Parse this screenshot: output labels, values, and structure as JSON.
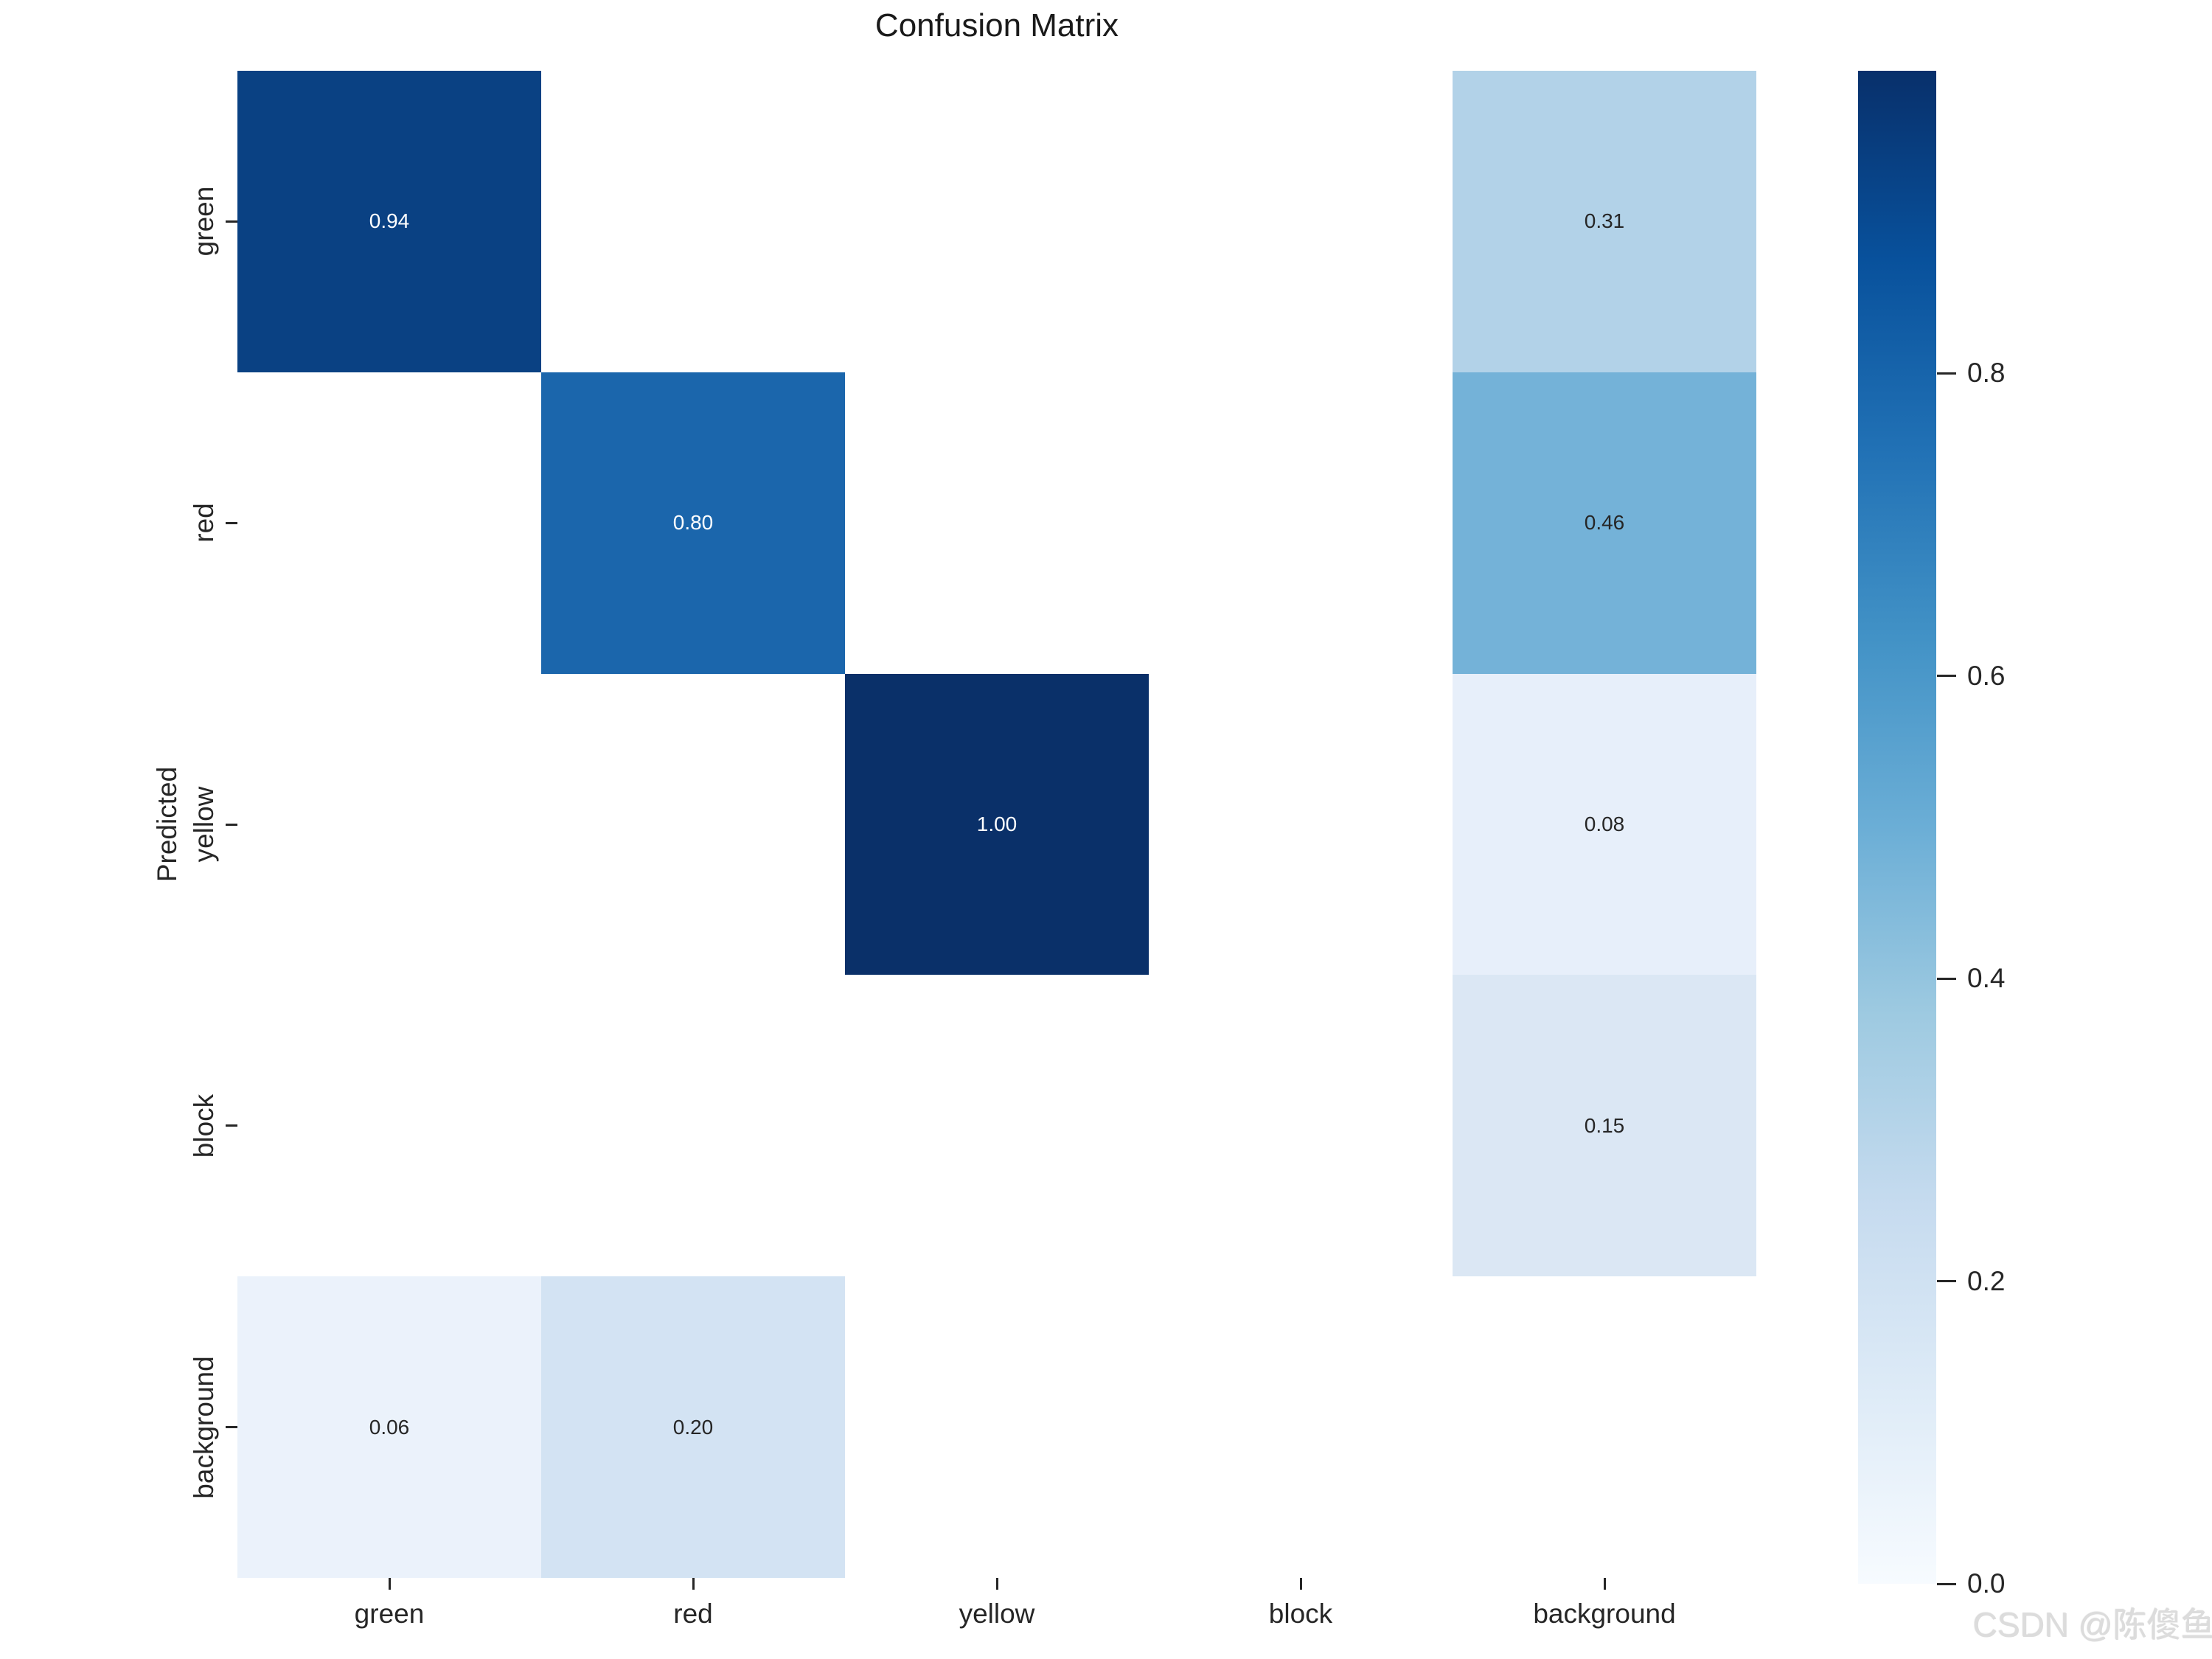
{
  "title": "Confusion Matrix",
  "watermark": "CSDN @陈傻鱼",
  "colors": {
    "figure_background": "#ffffff",
    "text": "#262626",
    "annotation_light": "#ffffff",
    "annotation_dark": "#262626",
    "masked_cell": "#ffffff",
    "watermark": "#dcdcdc",
    "colormap_stops_low_to_high": [
      "#f7fbff",
      "#deebf7",
      "#c6dbef",
      "#9ecae1",
      "#6baed6",
      "#4292c6",
      "#2171b5",
      "#08519c",
      "#08306b"
    ]
  },
  "chart_data": {
    "type": "heatmap",
    "title": "Confusion Matrix",
    "xlabel": "",
    "ylabel": "Predicted",
    "x_categories": [
      "green",
      "red",
      "yellow",
      "block",
      "background"
    ],
    "y_categories": [
      "green",
      "red",
      "yellow",
      "block",
      "background"
    ],
    "values": [
      [
        0.94,
        null,
        null,
        null,
        0.31
      ],
      [
        null,
        0.8,
        null,
        null,
        0.46
      ],
      [
        null,
        null,
        1.0,
        null,
        0.08
      ],
      [
        null,
        null,
        null,
        null,
        0.15
      ],
      [
        0.06,
        0.2,
        null,
        null,
        null
      ]
    ],
    "cell_colors": [
      [
        "#0a4183",
        "#ffffff",
        "#ffffff",
        "#ffffff",
        "#b2d2e8"
      ],
      [
        "#ffffff",
        "#1b66ac",
        "#ffffff",
        "#ffffff",
        "#74b2d8"
      ],
      [
        "#ffffff",
        "#ffffff",
        "#0a3069",
        "#ffffff",
        "#e7effa"
      ],
      [
        "#ffffff",
        "#ffffff",
        "#ffffff",
        "#ffffff",
        "#dbe7f4"
      ],
      [
        "#ebf2fb",
        "#d3e3f3",
        "#ffffff",
        "#ffffff",
        "#ffffff"
      ]
    ],
    "cell_text_colors": [
      [
        "#ffffff",
        "",
        "",
        "",
        "#262626"
      ],
      [
        "",
        "#ffffff",
        "",
        "",
        "#262626"
      ],
      [
        "",
        "",
        "#ffffff",
        "",
        "#262626"
      ],
      [
        "",
        "",
        "",
        "",
        "#262626"
      ],
      [
        "#262626",
        "#262626",
        "",
        "",
        ""
      ]
    ],
    "value_format_decimals": 2,
    "vmin": 0.0,
    "vmax": 1.0,
    "colormap": "Blues",
    "colorbar_ticks": [
      0.0,
      0.2,
      0.4,
      0.6,
      0.8
    ],
    "grid": false,
    "legend_position": "colorbar-right"
  }
}
